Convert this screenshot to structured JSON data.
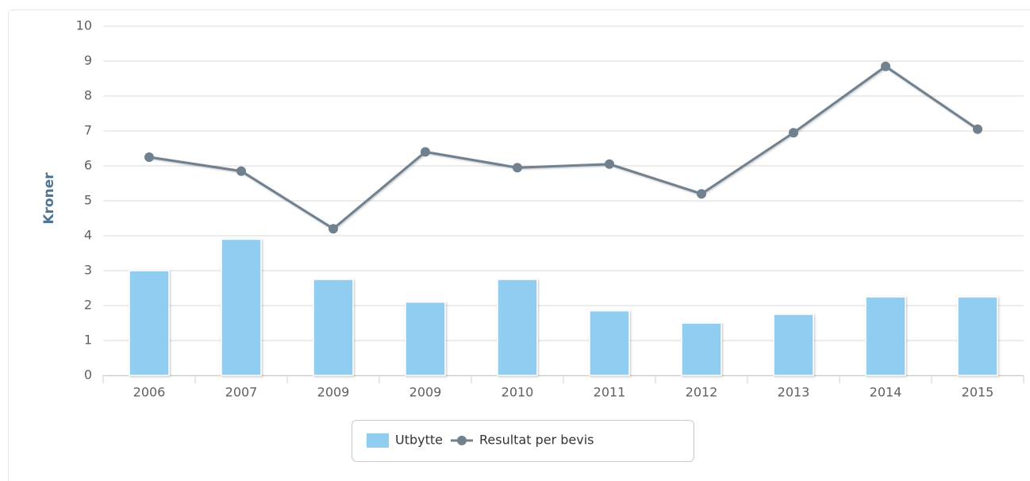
{
  "chart_data": {
    "type": "combo",
    "y_label": "Kroner",
    "categories": [
      "2006",
      "2007",
      "2009",
      "2009",
      "2010",
      "2011",
      "2012",
      "2013",
      "2014",
      "2015"
    ],
    "series": [
      {
        "name": "Utbytte",
        "type": "column",
        "color": "#90cdf0",
        "values": [
          3.0,
          3.9,
          2.75,
          2.1,
          2.75,
          1.85,
          1.5,
          1.75,
          2.25,
          2.25
        ]
      },
      {
        "name": "Resultat per bevis",
        "type": "line",
        "color": "#6f808e",
        "values": [
          6.25,
          5.85,
          4.2,
          6.4,
          5.95,
          6.05,
          5.2,
          6.95,
          8.85,
          7.05
        ]
      }
    ],
    "ylim": [
      0,
      10
    ],
    "yticks": [
      0,
      1,
      2,
      3,
      4,
      5,
      6,
      7,
      8,
      9,
      10
    ],
    "grid": true,
    "legend": "bottom"
  }
}
